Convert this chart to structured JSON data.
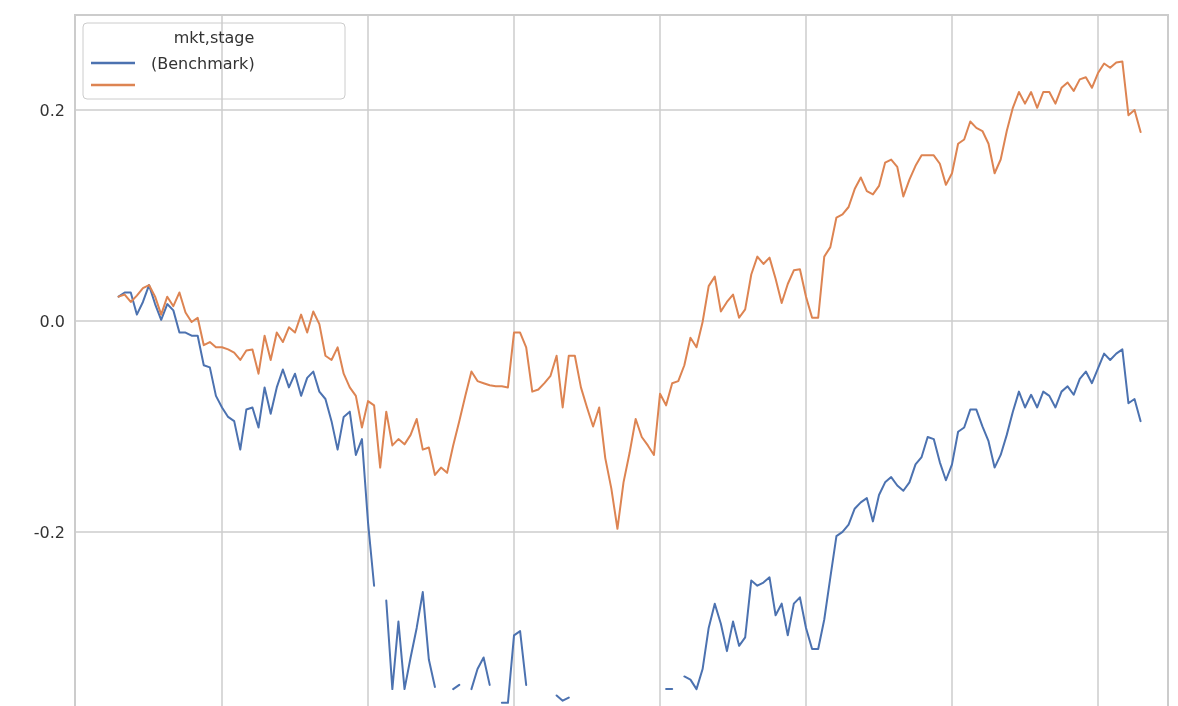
{
  "chart_data": {
    "type": "line",
    "legend_title": "mkt,stage",
    "legend": "top left",
    "grid": true,
    "tick_labels": "y",
    "line_style": "solid",
    "categories": [
      null,
      null,
      null,
      null,
      null,
      null,
      null,
      null,
      null,
      null,
      null,
      null,
      null,
      null,
      null,
      null,
      null,
      null,
      null,
      null,
      null,
      null,
      null,
      null,
      null,
      null,
      null,
      null,
      null,
      null,
      null,
      null,
      null,
      null,
      null,
      null,
      null,
      null,
      null,
      null,
      null,
      null,
      null,
      null,
      null,
      null,
      null,
      null,
      null,
      null,
      null,
      null,
      null,
      null,
      null,
      null,
      null,
      null,
      null,
      null,
      null,
      null,
      null,
      null,
      null,
      null,
      null,
      null,
      null,
      null,
      null,
      null,
      null,
      null,
      null,
      null,
      null,
      null,
      null,
      null,
      null,
      null,
      null,
      null,
      null,
      null,
      null,
      null,
      null,
      null,
      null,
      null,
      null,
      null,
      null,
      null,
      null,
      null,
      null,
      null,
      null,
      null,
      null,
      null,
      null,
      null,
      null,
      null,
      null,
      null,
      null,
      null,
      null,
      null,
      null,
      null,
      null,
      null,
      null,
      null,
      null,
      null,
      null,
      null,
      null,
      null,
      null,
      null,
      null,
      null,
      null,
      null,
      null,
      null,
      null,
      null,
      null,
      null,
      null,
      null,
      null,
      null,
      null,
      null,
      null,
      null,
      null,
      null,
      null,
      null,
      null,
      null,
      null,
      null,
      null,
      null,
      null,
      null,
      null,
      null,
      null,
      null,
      null,
      null,
      null,
      null,
      null,
      null,
      null
    ],
    "ylim": [
      -0.365,
      0.29
    ],
    "yticks": [
      {
        "value": -0.2,
        "label": "-0.2"
      },
      {
        "value": 0,
        "label": "0.0"
      },
      {
        "value": 0.2,
        "label": "0.2"
      }
    ],
    "series": [
      {
        "name": "(Benchmark)",
        "color": "#4c72b0",
        "values": [
          0.023,
          0.027,
          0.027,
          0.006,
          0.018,
          0.034,
          0.016,
          0.001,
          0.016,
          0.01,
          -0.011,
          -0.011,
          -0.014,
          -0.014,
          -0.042,
          -0.044,
          -0.071,
          -0.082,
          -0.091,
          -0.095,
          -0.122,
          -0.084,
          -0.082,
          -0.101,
          -0.063,
          -0.088,
          -0.063,
          -0.046,
          -0.063,
          -0.05,
          -0.071,
          -0.054,
          -0.048,
          -0.067,
          -0.074,
          -0.095,
          -0.122,
          -0.091,
          -0.086,
          -0.127,
          -0.112,
          -0.191,
          -0.251,
          null,
          -0.265,
          -0.349,
          -0.285,
          -0.349,
          -0.319,
          -0.291,
          -0.257,
          -0.321,
          -0.347,
          null,
          null,
          -0.349,
          -0.345,
          null,
          -0.349,
          -0.33,
          -0.319,
          -0.345,
          null,
          -0.362,
          -0.362,
          -0.298,
          -0.294,
          -0.345,
          null,
          null,
          null,
          null,
          -0.355,
          -0.36,
          -0.357,
          null,
          null,
          null,
          null,
          null,
          null,
          null,
          null,
          null,
          null,
          null,
          null,
          null,
          null,
          null,
          -0.349,
          -0.349,
          null,
          -0.337,
          -0.34,
          -0.349,
          -0.33,
          -0.291,
          -0.268,
          -0.287,
          -0.313,
          -0.285,
          -0.308,
          -0.3,
          -0.246,
          -0.251,
          -0.248,
          -0.243,
          -0.279,
          -0.268,
          -0.298,
          -0.268,
          -0.262,
          -0.291,
          -0.311,
          -0.311,
          -0.283,
          -0.243,
          -0.204,
          -0.2,
          -0.193,
          -0.178,
          -0.172,
          -0.168,
          -0.19,
          -0.165,
          -0.153,
          -0.148,
          -0.156,
          -0.161,
          -0.153,
          -0.136,
          -0.129,
          -0.11,
          -0.112,
          -0.134,
          -0.151,
          -0.136,
          -0.105,
          -0.101,
          -0.084,
          -0.084,
          -0.1,
          -0.114,
          -0.139,
          -0.127,
          -0.108,
          -0.086,
          -0.067,
          -0.082,
          -0.07,
          -0.082,
          -0.067,
          -0.071,
          -0.082,
          -0.067,
          -0.062,
          -0.07,
          -0.055,
          -0.048,
          -0.059,
          -0.045,
          -0.031,
          -0.037,
          -0.031,
          -0.027,
          -0.078,
          -0.074,
          -0.095
        ]
      },
      {
        "color": "#dd8452",
        "values": [
          0.023,
          0.025,
          0.018,
          0.024,
          0.031,
          0.034,
          0.023,
          0.006,
          0.023,
          0.014,
          0.027,
          0.008,
          -0.001,
          0.003,
          -0.023,
          -0.02,
          -0.025,
          -0.025,
          -0.027,
          -0.03,
          -0.037,
          -0.028,
          -0.027,
          -0.05,
          -0.014,
          -0.037,
          -0.011,
          -0.02,
          -0.006,
          -0.011,
          0.006,
          -0.011,
          0.009,
          -0.003,
          -0.033,
          -0.037,
          -0.025,
          -0.05,
          -0.063,
          -0.071,
          -0.101,
          -0.076,
          -0.08,
          -0.139,
          -0.086,
          -0.118,
          -0.112,
          -0.117,
          -0.108,
          -0.093,
          -0.122,
          -0.12,
          -0.146,
          -0.139,
          -0.144,
          -0.118,
          -0.095,
          -0.071,
          -0.048,
          -0.057,
          -0.059,
          -0.061,
          -0.062,
          -0.062,
          -0.063,
          -0.011,
          -0.011,
          -0.025,
          -0.067,
          -0.065,
          -0.059,
          -0.052,
          -0.033,
          -0.082,
          -0.033,
          -0.033,
          -0.063,
          -0.082,
          -0.1,
          -0.082,
          -0.13,
          -0.159,
          -0.197,
          -0.153,
          -0.125,
          -0.093,
          -0.11,
          -0.118,
          -0.127,
          -0.069,
          -0.08,
          -0.059,
          -0.057,
          -0.042,
          -0.016,
          -0.025,
          -0.001,
          0.033,
          0.042,
          0.009,
          0.018,
          0.025,
          0.003,
          0.011,
          0.044,
          0.061,
          0.054,
          0.06,
          0.04,
          0.017,
          0.035,
          0.048,
          0.049,
          0.023,
          0.003,
          0.003,
          0.061,
          0.07,
          0.098,
          0.101,
          0.108,
          0.125,
          0.136,
          0.123,
          0.12,
          0.128,
          0.15,
          0.153,
          0.146,
          0.118,
          0.134,
          0.147,
          0.157,
          0.157,
          0.157,
          0.149,
          0.129,
          0.14,
          0.168,
          0.172,
          0.189,
          0.183,
          0.18,
          0.168,
          0.14,
          0.153,
          0.18,
          0.202,
          0.217,
          0.206,
          0.217,
          0.202,
          0.217,
          0.217,
          0.206,
          0.221,
          0.226,
          0.218,
          0.229,
          0.231,
          0.221,
          0.235,
          0.244,
          0.24,
          0.245,
          0.246,
          0.195,
          0.2,
          0.179
        ]
      }
    ]
  }
}
